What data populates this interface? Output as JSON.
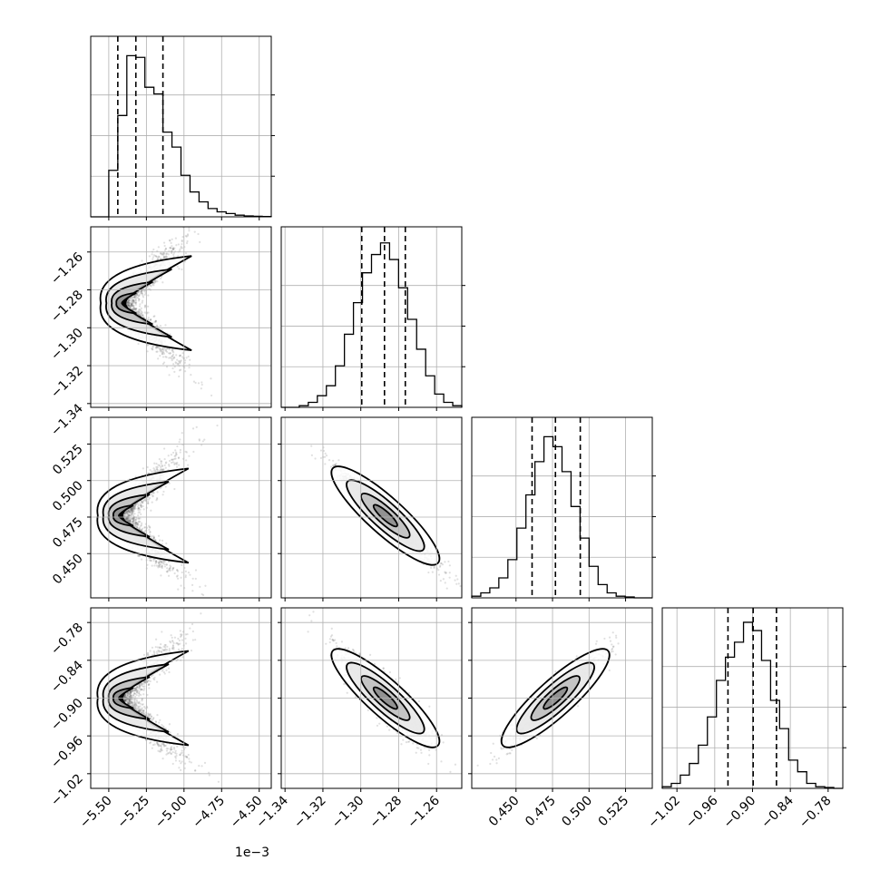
{
  "chart_data": {
    "type": "corner",
    "grid": true,
    "x_offset_text": "1e−3",
    "params": [
      {
        "range": [
          -5.62,
          -4.42
        ],
        "ticks": [
          -5.5,
          -5.25,
          -5.0,
          -4.75,
          -4.5
        ],
        "tick_labels": [
          "−5.50",
          "−5.25",
          "−5.00",
          "−4.75",
          "−4.50"
        ],
        "quantiles": [
          -5.44,
          -5.32,
          -5.14
        ],
        "hist": [
          0,
          0,
          0.28,
          0.61,
          0.97,
          0.96,
          0.78,
          0.74,
          0.51,
          0.42,
          0.25,
          0.15,
          0.09,
          0.05,
          0.03,
          0.02,
          0.01,
          0.005,
          0.003,
          0.002
        ]
      },
      {
        "range": [
          -1.342,
          -1.2467
        ],
        "ticks": [
          -1.34,
          -1.32,
          -1.3,
          -1.28,
          -1.26
        ],
        "tick_labels": [
          "−1.34",
          "−1.32",
          "−1.30",
          "−1.28",
          "−1.26"
        ],
        "quantiles": [
          -1.2995,
          -1.2875,
          -1.2765
        ],
        "hist": [
          0,
          0,
          0.01,
          0.03,
          0.07,
          0.13,
          0.25,
          0.44,
          0.63,
          0.81,
          0.92,
          0.99,
          0.89,
          0.72,
          0.53,
          0.35,
          0.19,
          0.08,
          0.03,
          0.01
        ]
      },
      {
        "range": [
          0.4197,
          0.5433
        ],
        "ticks": [
          0.45,
          0.475,
          0.5,
          0.525
        ],
        "tick_labels": [
          "0.450",
          "0.475",
          "0.500",
          "0.525"
        ],
        "quantiles": [
          0.461,
          0.477,
          0.494
        ],
        "hist": [
          0.01,
          0.03,
          0.06,
          0.12,
          0.23,
          0.42,
          0.62,
          0.82,
          0.97,
          0.91,
          0.76,
          0.55,
          0.36,
          0.19,
          0.08,
          0.03,
          0.01,
          0.005,
          0.0,
          0.0
        ]
      },
      {
        "range": [
          -1.0433,
          -0.7567
        ],
        "ticks": [
          -1.02,
          -0.96,
          -0.9,
          -0.84,
          -0.78
        ],
        "tick_labels": [
          "−1.02",
          "−0.96",
          "−0.90",
          "−0.84",
          "−0.78"
        ],
        "quantiles": [
          -0.939,
          -0.899,
          -0.862
        ],
        "hist": [
          0.01,
          0.03,
          0.08,
          0.15,
          0.26,
          0.43,
          0.65,
          0.79,
          0.88,
          1.0,
          0.95,
          0.77,
          0.53,
          0.36,
          0.17,
          0.1,
          0.03,
          0.01,
          0.005,
          0.0
        ]
      }
    ],
    "pairs": [
      {
        "row": 1,
        "col": 0,
        "shape": "boomerang",
        "corr": 0.0,
        "center": [
          -5.42,
          -1.287
        ],
        "spread": [
          0.1,
          0.008
        ]
      },
      {
        "row": 2,
        "col": 0,
        "shape": "boomerang",
        "corr": 0.0,
        "center": [
          -5.44,
          0.476
        ],
        "spread": [
          0.1,
          0.01
        ]
      },
      {
        "row": 2,
        "col": 1,
        "shape": "ellipse",
        "corr": -0.97,
        "center": [
          -1.287,
          0.476
        ],
        "spread": [
          0.012,
          0.015
        ]
      },
      {
        "row": 3,
        "col": 0,
        "shape": "boomerang",
        "corr": 0.0,
        "center": [
          -5.44,
          -0.9
        ],
        "spread": [
          0.1,
          0.022
        ]
      },
      {
        "row": 3,
        "col": 1,
        "shape": "ellipse",
        "corr": -0.88,
        "center": [
          -1.287,
          -0.9
        ],
        "spread": [
          0.011,
          0.034
        ]
      },
      {
        "row": 3,
        "col": 2,
        "shape": "ellipse",
        "corr": 0.93,
        "center": [
          0.477,
          -0.9
        ],
        "spread": [
          0.015,
          0.034
        ]
      }
    ]
  }
}
